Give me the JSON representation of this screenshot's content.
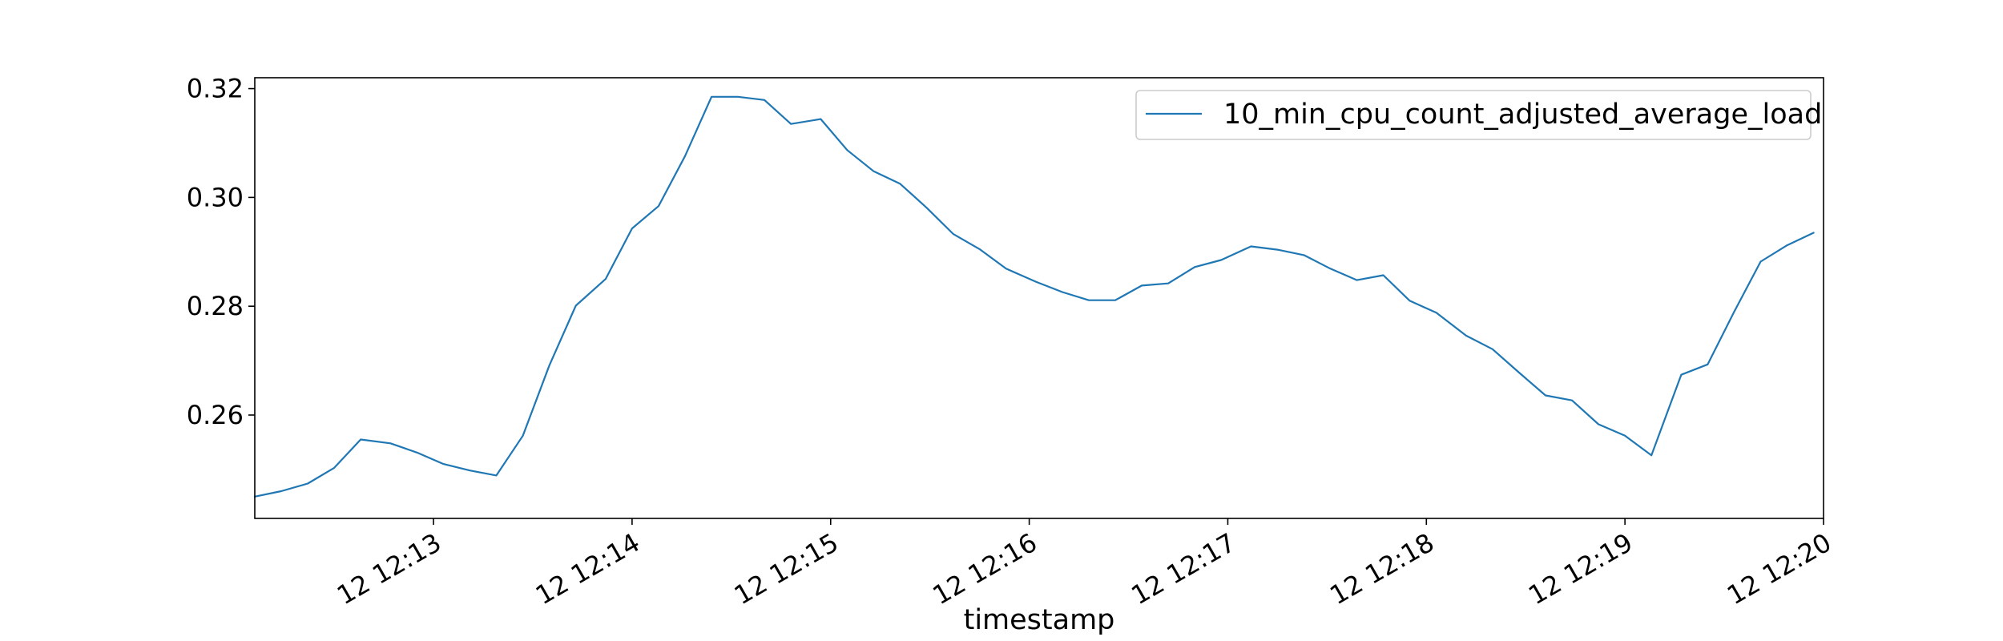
{
  "chart_data": {
    "type": "line",
    "title": "",
    "xlabel": "timestamp",
    "ylabel": "",
    "x_ticks": [
      "12 12:13",
      "12 12:14",
      "12 12:15",
      "12 12:16",
      "12 12:17",
      "12 12:18",
      "12 12:19",
      "12 12:20"
    ],
    "y_ticks": [
      "0.26",
      "0.28",
      "0.30",
      "0.32"
    ],
    "xlim": [
      "12:12:06",
      "12:20:00"
    ],
    "ylim": [
      0.241,
      0.322
    ],
    "grid": false,
    "legend": {
      "placement": "upper right",
      "entries": [
        "10_min_cpu_count_adjusted_average_load"
      ]
    },
    "series": [
      {
        "name": "10_min_cpu_count_adjusted_average_load",
        "color": "#1f77b4",
        "x": [
          "12:12:06",
          "12:12:14",
          "12:12:22",
          "12:12:30",
          "12:12:38",
          "12:12:47",
          "12:12:55",
          "12:13:03",
          "12:13:11",
          "12:13:19",
          "12:13:27",
          "12:13:35",
          "12:13:43",
          "12:13:52",
          "12:14:00",
          "12:14:08",
          "12:14:16",
          "12:14:24",
          "12:14:32",
          "12:14:40",
          "12:14:48",
          "12:14:57",
          "12:15:05",
          "12:15:13",
          "12:15:21",
          "12:15:29",
          "12:15:37",
          "12:15:45",
          "12:15:53",
          "12:16:02",
          "12:16:10",
          "12:16:18",
          "12:16:26",
          "12:16:34",
          "12:16:42",
          "12:16:50",
          "12:16:58",
          "12:17:07",
          "12:17:15",
          "12:17:23",
          "12:17:31",
          "12:17:39",
          "12:17:47",
          "12:17:55",
          "12:18:03",
          "12:18:12",
          "12:18:20",
          "12:18:28",
          "12:18:36",
          "12:18:44",
          "12:18:52",
          "12:19:00",
          "12:19:08",
          "12:19:17",
          "12:19:25",
          "12:19:33",
          "12:19:41",
          "12:19:49",
          "12:19:57"
        ],
        "values": [
          0.245,
          0.246,
          0.2474,
          0.2503,
          0.2555,
          0.2548,
          0.2531,
          0.251,
          0.2498,
          0.2489,
          0.2562,
          0.2691,
          0.2801,
          0.285,
          0.2943,
          0.2984,
          0.3076,
          0.3185,
          0.3185,
          0.3179,
          0.3135,
          0.3144,
          0.3087,
          0.3048,
          0.3025,
          0.2981,
          0.2933,
          0.2905,
          0.2869,
          0.2845,
          0.2826,
          0.2811,
          0.2811,
          0.2838,
          0.2842,
          0.2872,
          0.2885,
          0.291,
          0.2904,
          0.2894,
          0.2869,
          0.2848,
          0.2857,
          0.281,
          0.2788,
          0.2746,
          0.2721,
          0.2678,
          0.2636,
          0.2627,
          0.2583,
          0.2562,
          0.2526,
          0.2674,
          0.2693,
          0.279,
          0.2882,
          0.2912,
          0.2935
        ]
      }
    ]
  }
}
